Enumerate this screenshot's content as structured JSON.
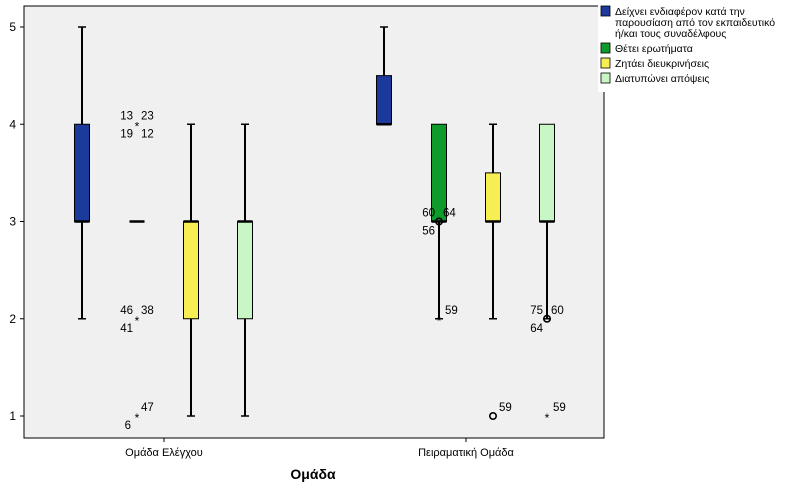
{
  "chart_data": {
    "type": "boxplot",
    "title": "",
    "xlabel": "Ομάδα",
    "ylabel": "",
    "ylim": [
      0.85,
      5.15
    ],
    "yticks": [
      1,
      2,
      3,
      4,
      5
    ],
    "grid": false,
    "legend_position": "right",
    "categories": [
      "Ομάδα Ελέγχου",
      "Πειραματική Ομάδα"
    ],
    "series": [
      {
        "name": "Δείχνει ενδιαφέρον κατά την παρουσίαση από τον εκπαιδευτικό ή/και τους συναδέλφους",
        "color": "#1c3a9c",
        "boxes": [
          {
            "min": 2,
            "q1": 3,
            "median": 3,
            "q3": 4,
            "max": 5,
            "outliers": []
          },
          {
            "min": 4,
            "q1": 4,
            "median": 4,
            "q3": 4.5,
            "max": 5,
            "outliers": []
          }
        ]
      },
      {
        "name": "Θέτει ερωτήματα",
        "color": "#0f9a2c",
        "boxes": [
          {
            "min": 3,
            "q1": 3,
            "median": 3,
            "q3": 3,
            "max": 3,
            "outliers": [
              {
                "y": 4,
                "marker": "star",
                "labels": [
                  "13",
                  "23",
                  "19",
                  "12"
                ]
              },
              {
                "y": 2,
                "marker": "star",
                "labels": [
                  "46",
                  "38",
                  "41"
                ]
              },
              {
                "y": 1,
                "marker": "star",
                "labels": [
                  "47",
                  "6"
                ]
              }
            ]
          },
          {
            "min": 2,
            "q1": 3,
            "median": 3,
            "q3": 4,
            "max": 4,
            "outliers": [
              {
                "y": 3,
                "marker": "circle",
                "labels": [
                  "60",
                  "64",
                  "56"
                ]
              },
              {
                "y": 2,
                "marker": "star",
                "labels": [
                  "59"
                ]
              }
            ]
          }
        ]
      },
      {
        "name": "Ζητάει διευκρινήσεις",
        "color": "#f6ee52",
        "boxes": [
          {
            "min": 1,
            "q1": 2,
            "median": 3,
            "q3": 3,
            "max": 4,
            "outliers": []
          },
          {
            "min": 2,
            "q1": 3,
            "median": 3,
            "q3": 3.5,
            "max": 4,
            "outliers": [
              {
                "y": 1,
                "marker": "circle",
                "labels": [
                  "59"
                ]
              }
            ]
          }
        ]
      },
      {
        "name": "Διατυπώνει απόψεις",
        "color": "#c8f6c4",
        "boxes": [
          {
            "min": 1,
            "q1": 2,
            "median": 3,
            "q3": 3,
            "max": 4,
            "outliers": []
          },
          {
            "min": 2,
            "q1": 3,
            "median": 3,
            "q3": 4,
            "max": 4,
            "outliers": [
              {
                "y": 2,
                "marker": "circle",
                "labels": [
                  "75",
                  "60",
                  "64"
                ]
              },
              {
                "y": 1,
                "marker": "star",
                "labels": [
                  "59"
                ]
              }
            ]
          }
        ]
      }
    ]
  }
}
